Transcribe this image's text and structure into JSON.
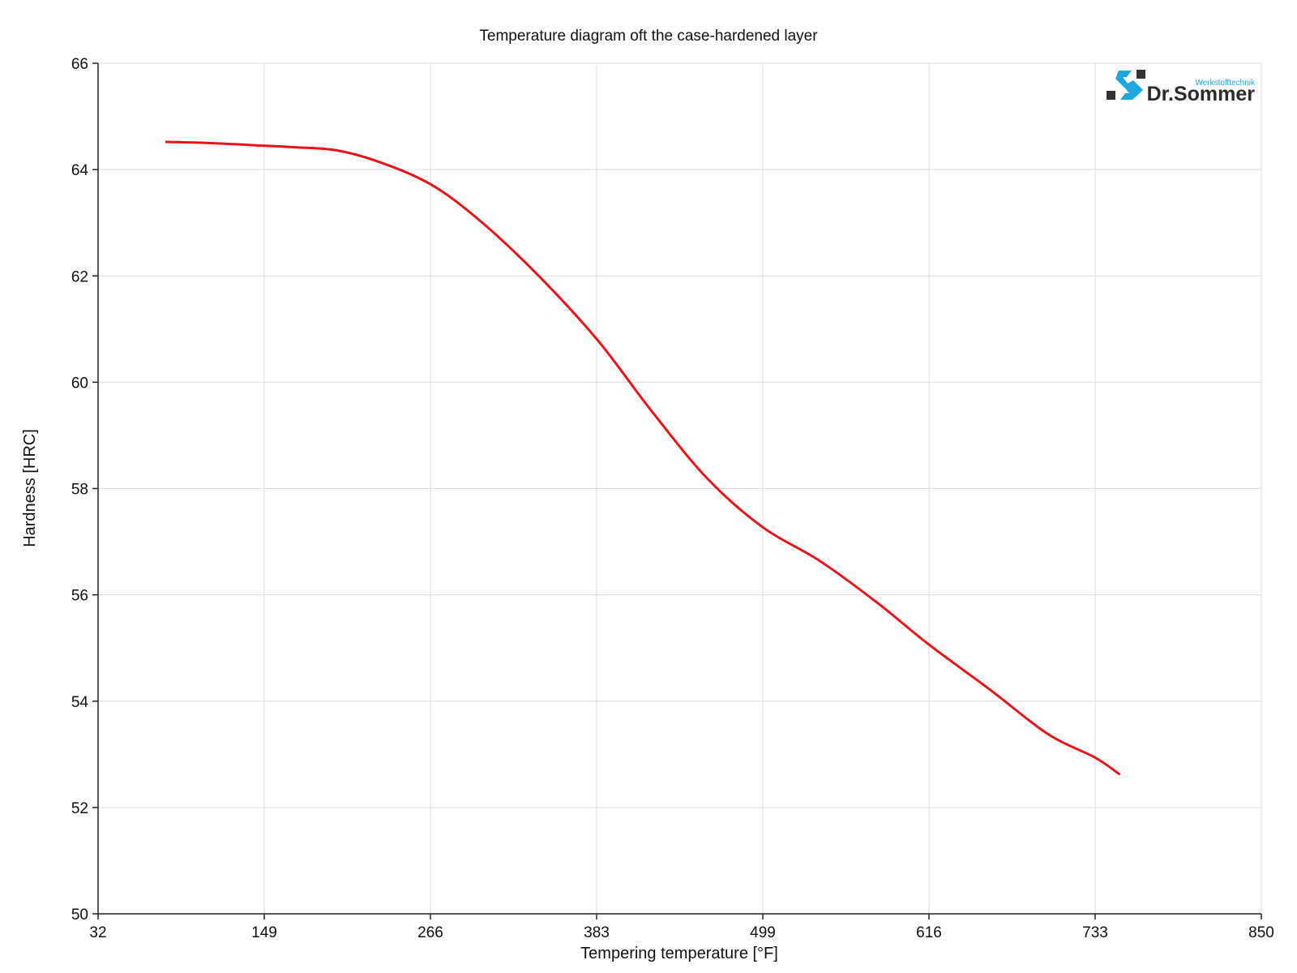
{
  "chart_data": {
    "type": "line",
    "title": "Temperature diagram oft the case-hardened layer",
    "xlabel": "Tempering temperature [°F]",
    "ylabel": "Hardness [HRC]",
    "xlim": [
      32,
      850
    ],
    "ylim": [
      50,
      66
    ],
    "xticks": [
      "32",
      "149",
      "266",
      "383",
      "499",
      "616",
      "733",
      "850"
    ],
    "yticks": [
      "50",
      "52",
      "54",
      "56",
      "58",
      "60",
      "62",
      "64",
      "66"
    ],
    "grid": true,
    "series": [
      {
        "color": "#e8141b",
        "x": [
          80,
          110,
          140,
          170,
          200,
          230,
          266,
          300,
          340,
          383,
          420,
          460,
          499,
          540,
          580,
          616,
          660,
          700,
          733,
          750
        ],
        "y": [
          64.52,
          64.5,
          64.46,
          64.42,
          64.36,
          64.14,
          63.72,
          63.05,
          62.05,
          60.8,
          59.5,
          58.2,
          57.28,
          56.63,
          55.85,
          55.07,
          54.2,
          53.38,
          52.94,
          52.63
        ]
      }
    ]
  },
  "logo": {
    "name": "Dr.Sommer",
    "sub": "Werkstofftechnik"
  }
}
